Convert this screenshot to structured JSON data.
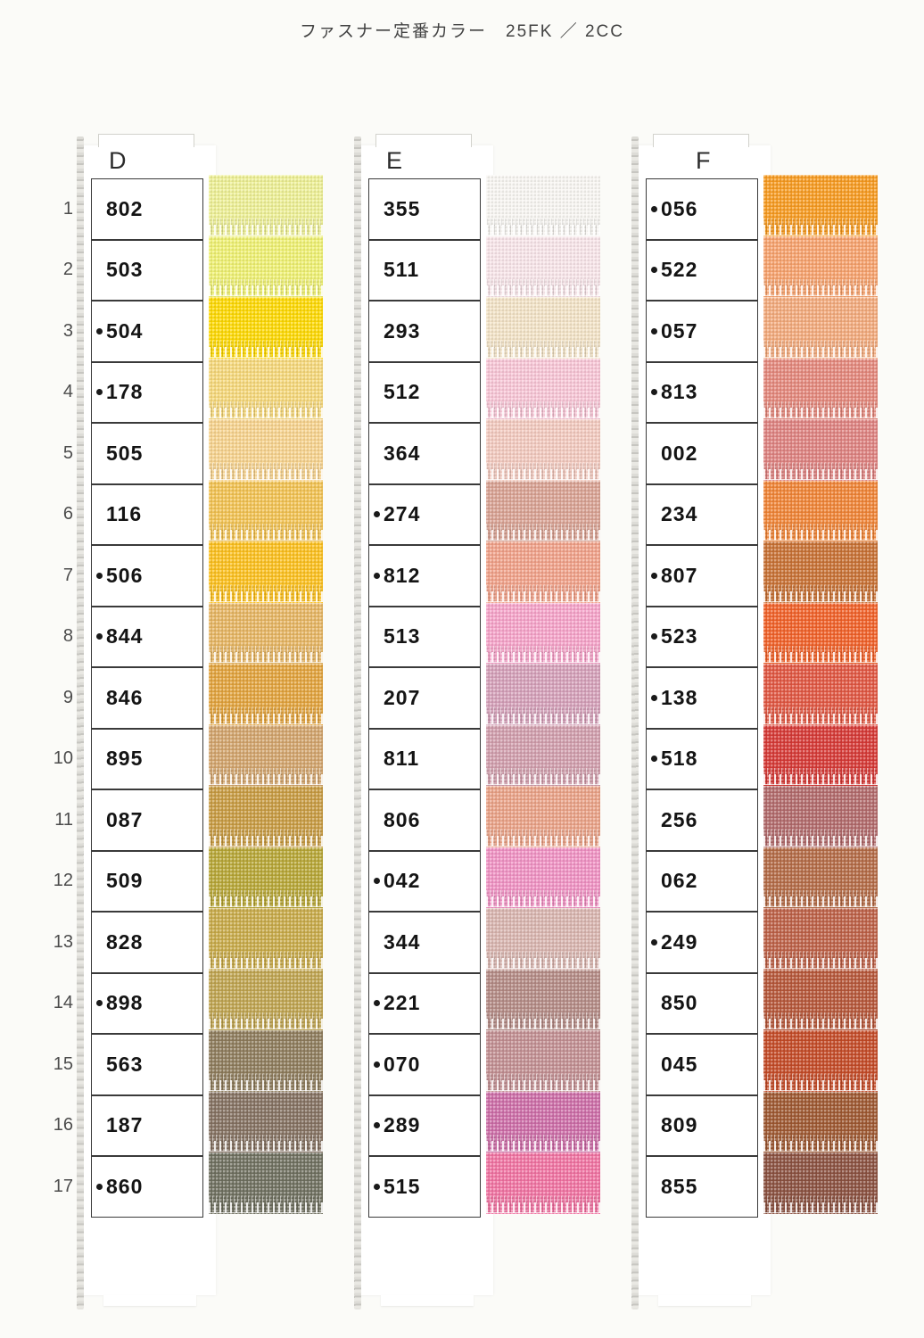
{
  "title": "ファスナー定番カラー　25FK ／ 2CC",
  "row_numbers": [
    "1",
    "2",
    "3",
    "4",
    "5",
    "6",
    "7",
    "8",
    "9",
    "10",
    "11",
    "12",
    "13",
    "14",
    "15",
    "16",
    "17"
  ],
  "columns": [
    {
      "letter": "D",
      "rows": [
        {
          "code": "802",
          "dot": false,
          "color": "#eef096"
        },
        {
          "code": "503",
          "dot": false,
          "color": "#eff173"
        },
        {
          "code": "504",
          "dot": true,
          "color": "#fed903"
        },
        {
          "code": "178",
          "dot": true,
          "color": "#f6d87b"
        },
        {
          "code": "505",
          "dot": false,
          "color": "#f7d38e"
        },
        {
          "code": "116",
          "dot": false,
          "color": "#f2c252"
        },
        {
          "code": "506",
          "dot": true,
          "color": "#fcc01e"
        },
        {
          "code": "844",
          "dot": true,
          "color": "#e6b562"
        },
        {
          "code": "846",
          "dot": false,
          "color": "#e2a33d"
        },
        {
          "code": "895",
          "dot": false,
          "color": "#d2a46c"
        },
        {
          "code": "087",
          "dot": false,
          "color": "#c89b42"
        },
        {
          "code": "509",
          "dot": false,
          "color": "#b7a636"
        },
        {
          "code": "828",
          "dot": false,
          "color": "#c8aa49"
        },
        {
          "code": "898",
          "dot": true,
          "color": "#bfa450"
        },
        {
          "code": "563",
          "dot": false,
          "color": "#8e7c5c"
        },
        {
          "code": "187",
          "dot": false,
          "color": "#847161"
        },
        {
          "code": "860",
          "dot": true,
          "color": "#6f705f"
        }
      ]
    },
    {
      "letter": "E",
      "rows": [
        {
          "code": "355",
          "dot": false,
          "color": "#f8f6f2"
        },
        {
          "code": "511",
          "dot": false,
          "color": "#f8e5e9"
        },
        {
          "code": "293",
          "dot": false,
          "color": "#f3e3c7"
        },
        {
          "code": "512",
          "dot": false,
          "color": "#f8c6d6"
        },
        {
          "code": "364",
          "dot": false,
          "color": "#f3cabf"
        },
        {
          "code": "274",
          "dot": true,
          "color": "#d9a293"
        },
        {
          "code": "812",
          "dot": true,
          "color": "#f1a189"
        },
        {
          "code": "513",
          "dot": false,
          "color": "#f6a3c9"
        },
        {
          "code": "207",
          "dot": false,
          "color": "#d5a0b9"
        },
        {
          "code": "811",
          "dot": false,
          "color": "#d19eac"
        },
        {
          "code": "806",
          "dot": false,
          "color": "#eaa287"
        },
        {
          "code": "042",
          "dot": true,
          "color": "#f092c3"
        },
        {
          "code": "344",
          "dot": false,
          "color": "#d9b5af"
        },
        {
          "code": "221",
          "dot": true,
          "color": "#b48b85"
        },
        {
          "code": "070",
          "dot": true,
          "color": "#c28f92"
        },
        {
          "code": "289",
          "dot": true,
          "color": "#cd6da7"
        },
        {
          "code": "515",
          "dot": true,
          "color": "#f173a2"
        }
      ]
    },
    {
      "letter": "F",
      "rows": [
        {
          "code": "056",
          "dot": true,
          "color": "#f79b21"
        },
        {
          "code": "522",
          "dot": true,
          "color": "#f7a26d"
        },
        {
          "code": "057",
          "dot": true,
          "color": "#f3aa7c"
        },
        {
          "code": "813",
          "dot": true,
          "color": "#e4887c"
        },
        {
          "code": "002",
          "dot": false,
          "color": "#de8280"
        },
        {
          "code": "234",
          "dot": false,
          "color": "#f08436"
        },
        {
          "code": "807",
          "dot": true,
          "color": "#c87134"
        },
        {
          "code": "523",
          "dot": true,
          "color": "#f16128"
        },
        {
          "code": "138",
          "dot": true,
          "color": "#e15742"
        },
        {
          "code": "518",
          "dot": true,
          "color": "#d63936"
        },
        {
          "code": "256",
          "dot": false,
          "color": "#b26a6b"
        },
        {
          "code": "062",
          "dot": false,
          "color": "#b46b46"
        },
        {
          "code": "249",
          "dot": true,
          "color": "#bd6147"
        },
        {
          "code": "850",
          "dot": false,
          "color": "#b65739"
        },
        {
          "code": "045",
          "dot": false,
          "color": "#c44b27"
        },
        {
          "code": "809",
          "dot": false,
          "color": "#9e5831"
        },
        {
          "code": "855",
          "dot": false,
          "color": "#8b5140"
        }
      ]
    }
  ]
}
